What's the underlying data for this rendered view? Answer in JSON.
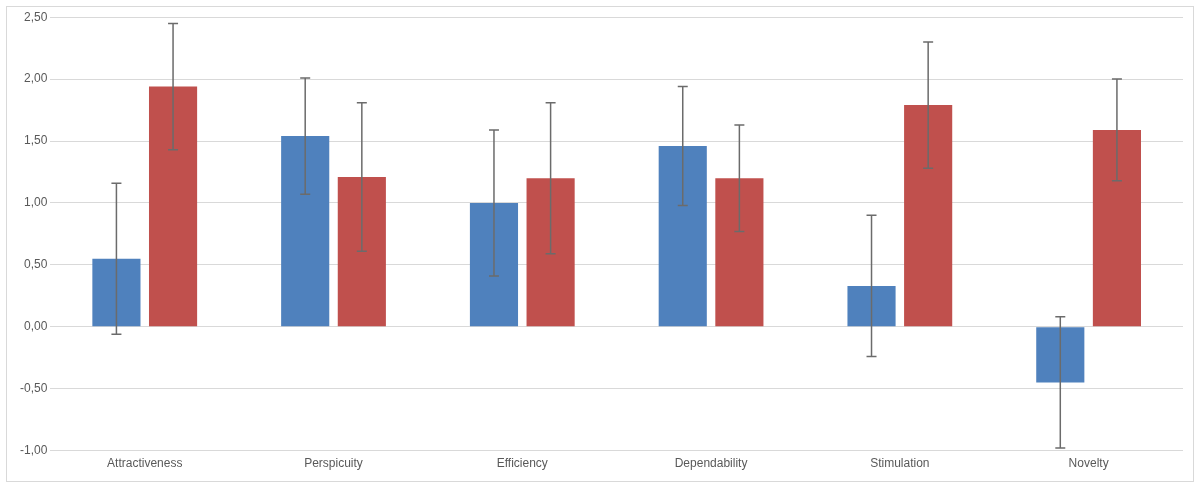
{
  "chart_data": {
    "type": "bar",
    "categories": [
      "Attractiveness",
      "Perspicuity",
      "Efficiency",
      "Dependability",
      "Stimulation",
      "Novelty"
    ],
    "series": [
      {
        "color": "#4f81bd",
        "values": [
          0.55,
          1.54,
          1.0,
          1.46,
          0.33,
          -0.45
        ],
        "errors": [
          0.61,
          0.47,
          0.59,
          0.48,
          0.57,
          0.53
        ]
      },
      {
        "color": "#c0504d",
        "values": [
          1.94,
          1.21,
          1.2,
          1.2,
          1.79,
          1.59
        ],
        "errors": [
          0.51,
          0.6,
          0.61,
          0.43,
          0.51,
          0.41
        ]
      }
    ],
    "ylim": [
      -1.0,
      2.5
    ],
    "yticks": [
      {
        "value": -1.0,
        "label": "-1,00"
      },
      {
        "value": -0.5,
        "label": "-0,50"
      },
      {
        "value": 0,
        "label": "0,00"
      },
      {
        "value": 0.5,
        "label": "0,50"
      },
      {
        "value": 1.0,
        "label": "1,00"
      },
      {
        "value": 1.5,
        "label": "1,50"
      },
      {
        "value": 2.0,
        "label": "2,00"
      },
      {
        "value": 2.5,
        "label": "2,50"
      }
    ],
    "grid": "y"
  }
}
